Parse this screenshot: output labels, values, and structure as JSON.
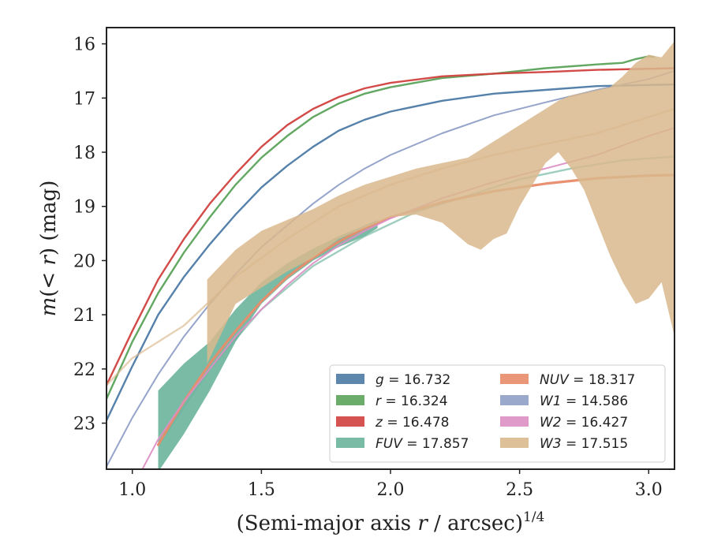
{
  "chart_data": {
    "type": "line",
    "xlabel": "(Semi-major axis r / arcsec)^1/4",
    "ylabel": "m(< r) (mag)",
    "xlim": [
      0.9,
      3.1
    ],
    "ylim": [
      23.85,
      15.7
    ],
    "y_inverted": true,
    "x_ticks": [
      1.0,
      1.5,
      2.0,
      2.5,
      3.0
    ],
    "x_tick_labels": [
      "1.0",
      "1.5",
      "2.0",
      "2.5",
      "3.0"
    ],
    "y_ticks": [
      16,
      17,
      18,
      19,
      20,
      21,
      22,
      23
    ],
    "y_tick_labels": [
      "16",
      "17",
      "18",
      "19",
      "20",
      "21",
      "22",
      "23"
    ],
    "grid": false,
    "legend_position": "lower-right",
    "legend_columns": 2,
    "series": [
      {
        "name": "g = 16.732",
        "color": "#4c7aa5",
        "kind": "line",
        "width": 2.4,
        "x": [
          0.9,
          1.0,
          1.1,
          1.2,
          1.3,
          1.4,
          1.5,
          1.6,
          1.7,
          1.8,
          1.9,
          2.0,
          2.2,
          2.4,
          2.6,
          2.8,
          3.0,
          3.1
        ],
        "y": [
          22.95,
          21.95,
          21.0,
          20.3,
          19.7,
          19.15,
          18.65,
          18.25,
          17.9,
          17.6,
          17.4,
          17.25,
          17.05,
          16.92,
          16.85,
          16.78,
          16.76,
          16.75
        ]
      },
      {
        "name": "r = 16.324",
        "color": "#5ba35a",
        "kind": "line",
        "width": 2.4,
        "x": [
          0.9,
          1.0,
          1.1,
          1.2,
          1.3,
          1.4,
          1.5,
          1.6,
          1.7,
          1.8,
          1.9,
          2.0,
          2.2,
          2.4,
          2.6,
          2.8,
          2.9,
          2.95,
          3.0,
          3.02
        ],
        "y": [
          22.55,
          21.5,
          20.6,
          19.85,
          19.2,
          18.6,
          18.1,
          17.7,
          17.35,
          17.1,
          16.92,
          16.8,
          16.63,
          16.55,
          16.45,
          16.38,
          16.35,
          16.28,
          16.23,
          16.24
        ]
      },
      {
        "name": "z = 16.478",
        "color": "#d0413e",
        "kind": "line",
        "width": 2.4,
        "x": [
          0.9,
          1.0,
          1.1,
          1.2,
          1.3,
          1.4,
          1.5,
          1.6,
          1.7,
          1.8,
          1.9,
          2.0,
          2.2,
          2.4,
          2.6,
          2.8,
          3.0,
          3.1
        ],
        "y": [
          22.3,
          21.3,
          20.35,
          19.6,
          18.95,
          18.4,
          17.9,
          17.5,
          17.2,
          16.98,
          16.82,
          16.72,
          16.6,
          16.55,
          16.52,
          16.48,
          16.46,
          16.45
        ]
      },
      {
        "name": "FUV = 17.857",
        "color": "#6bb49c",
        "kind": "band",
        "x": [
          1.1,
          1.2,
          1.3,
          1.4,
          1.5,
          1.6,
          1.7,
          1.8,
          1.9,
          1.95
        ],
        "y_low": [
          23.9,
          23.2,
          22.4,
          21.5,
          20.8,
          20.35,
          20.0,
          19.75,
          19.55,
          19.4
        ],
        "y_high": [
          22.4,
          21.9,
          21.5,
          20.9,
          20.4,
          20.05,
          19.78,
          19.55,
          19.35,
          19.25
        ],
        "line_x": [
          1.1,
          1.3,
          1.5,
          1.7,
          1.9,
          2.1,
          2.3,
          2.5,
          2.7,
          2.9,
          3.1
        ],
        "line_y": [
          23.4,
          22.0,
          20.9,
          20.1,
          19.55,
          19.1,
          18.8,
          18.5,
          18.3,
          18.15,
          18.08
        ]
      },
      {
        "name": "NUV = 18.317",
        "color": "#e88c6a",
        "kind": "line",
        "width": 3.2,
        "x": [
          1.1,
          1.2,
          1.3,
          1.4,
          1.5,
          1.6,
          1.7,
          1.8,
          1.9,
          2.0,
          2.2,
          2.4,
          2.6,
          2.8,
          3.0,
          3.1
        ],
        "y": [
          23.4,
          22.6,
          21.9,
          21.3,
          20.75,
          20.3,
          19.95,
          19.65,
          19.4,
          19.2,
          18.92,
          18.72,
          18.58,
          18.48,
          18.43,
          18.42
        ]
      },
      {
        "name": "W1 = 14.586",
        "color": "#8f9fc7",
        "kind": "line",
        "width": 2.0,
        "x": [
          0.9,
          1.0,
          1.1,
          1.2,
          1.3,
          1.4,
          1.5,
          1.6,
          1.7,
          1.8,
          1.9,
          2.0,
          2.2,
          2.4,
          2.6,
          2.8,
          3.0,
          3.1
        ],
        "y": [
          23.8,
          22.9,
          22.1,
          21.4,
          20.8,
          20.25,
          19.75,
          19.35,
          18.95,
          18.6,
          18.3,
          18.05,
          17.65,
          17.32,
          17.08,
          16.85,
          16.65,
          16.5
        ]
      },
      {
        "name": "W2 = 16.427",
        "color": "#dc8fc4",
        "kind": "line",
        "width": 2.0,
        "x": [
          1.0,
          1.1,
          1.2,
          1.3,
          1.4,
          1.5,
          1.6,
          1.7,
          1.8,
          1.9,
          2.0,
          2.2,
          2.4,
          2.6,
          2.8,
          3.0,
          3.1
        ],
        "y": [
          24.2,
          23.3,
          22.6,
          22.0,
          21.4,
          20.9,
          20.45,
          20.05,
          19.72,
          19.45,
          19.22,
          18.85,
          18.55,
          18.3,
          18.05,
          17.7,
          17.55
        ]
      },
      {
        "name": "W3 = 17.515",
        "color": "#d9b98d",
        "kind": "band",
        "x": [
          1.29,
          1.4,
          1.5,
          1.6,
          1.7,
          1.8,
          1.9,
          2.0,
          2.1,
          2.2,
          2.3,
          2.35,
          2.4,
          2.45,
          2.5,
          2.55,
          2.6,
          2.65,
          2.7,
          2.75,
          2.8,
          2.85,
          2.9,
          2.95,
          3.0,
          3.05,
          3.1
        ],
        "y_low": [
          21.9,
          20.8,
          20.5,
          20.2,
          19.95,
          19.6,
          19.4,
          19.2,
          19.15,
          19.3,
          19.7,
          19.8,
          19.6,
          19.5,
          19.0,
          18.6,
          18.2,
          18.0,
          18.3,
          18.7,
          19.3,
          19.9,
          20.4,
          20.8,
          20.7,
          20.4,
          21.4
        ],
        "y_high": [
          20.35,
          19.8,
          19.45,
          19.25,
          19.05,
          18.8,
          18.6,
          18.45,
          18.3,
          18.2,
          18.1,
          17.95,
          17.8,
          17.65,
          17.5,
          17.35,
          17.2,
          17.05,
          16.95,
          16.9,
          16.85,
          16.8,
          16.6,
          16.35,
          16.2,
          16.25,
          15.95
        ],
        "line_x": [
          0.9,
          1.0,
          1.1,
          1.2,
          1.3,
          1.4,
          1.5,
          1.6,
          1.7,
          1.8,
          1.9,
          2.0,
          2.2,
          2.4,
          2.6,
          2.8,
          3.0,
          3.1
        ],
        "line_y": [
          22.3,
          21.8,
          21.5,
          21.2,
          20.75,
          20.3,
          19.95,
          19.6,
          19.3,
          19.0,
          18.8,
          18.6,
          18.3,
          18.05,
          17.85,
          17.65,
          17.35,
          17.2
        ]
      }
    ]
  }
}
